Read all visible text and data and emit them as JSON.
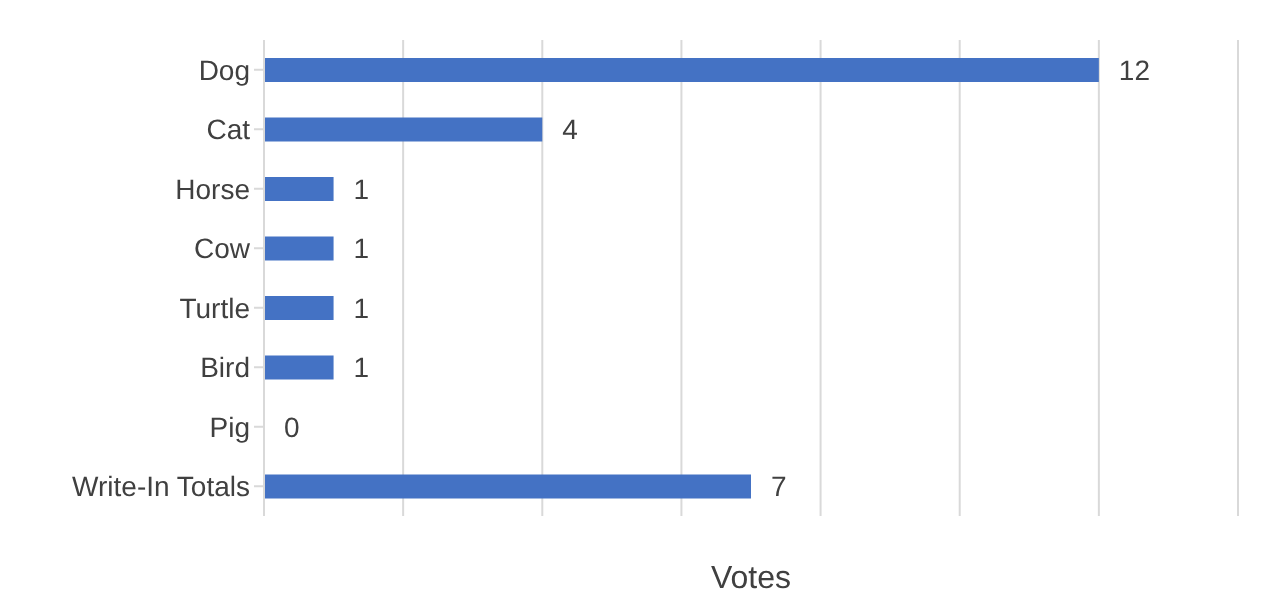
{
  "chart_data": {
    "type": "bar",
    "orientation": "horizontal",
    "xlabel": "Votes",
    "categories": [
      "Dog",
      "Cat",
      "Horse",
      "Cow",
      "Turtle",
      "Bird",
      "Pig",
      "Write-In Totals"
    ],
    "values": [
      12,
      4,
      1,
      1,
      1,
      1,
      0,
      7
    ],
    "color": "#4472c4",
    "xlim": [
      0,
      14
    ],
    "xticks": [
      {
        "value": 0,
        "label": null
      },
      {
        "value": 2,
        "label": null
      },
      {
        "value": 4,
        "label": null
      },
      {
        "value": 6,
        "label": null
      },
      {
        "value": 8,
        "label": null
      },
      {
        "value": 10,
        "label": null
      },
      {
        "value": 12,
        "label": null
      },
      {
        "value": 14,
        "label": null
      }
    ],
    "tick_labels": "y",
    "grid": "x",
    "data_labels": true,
    "legend": false
  }
}
